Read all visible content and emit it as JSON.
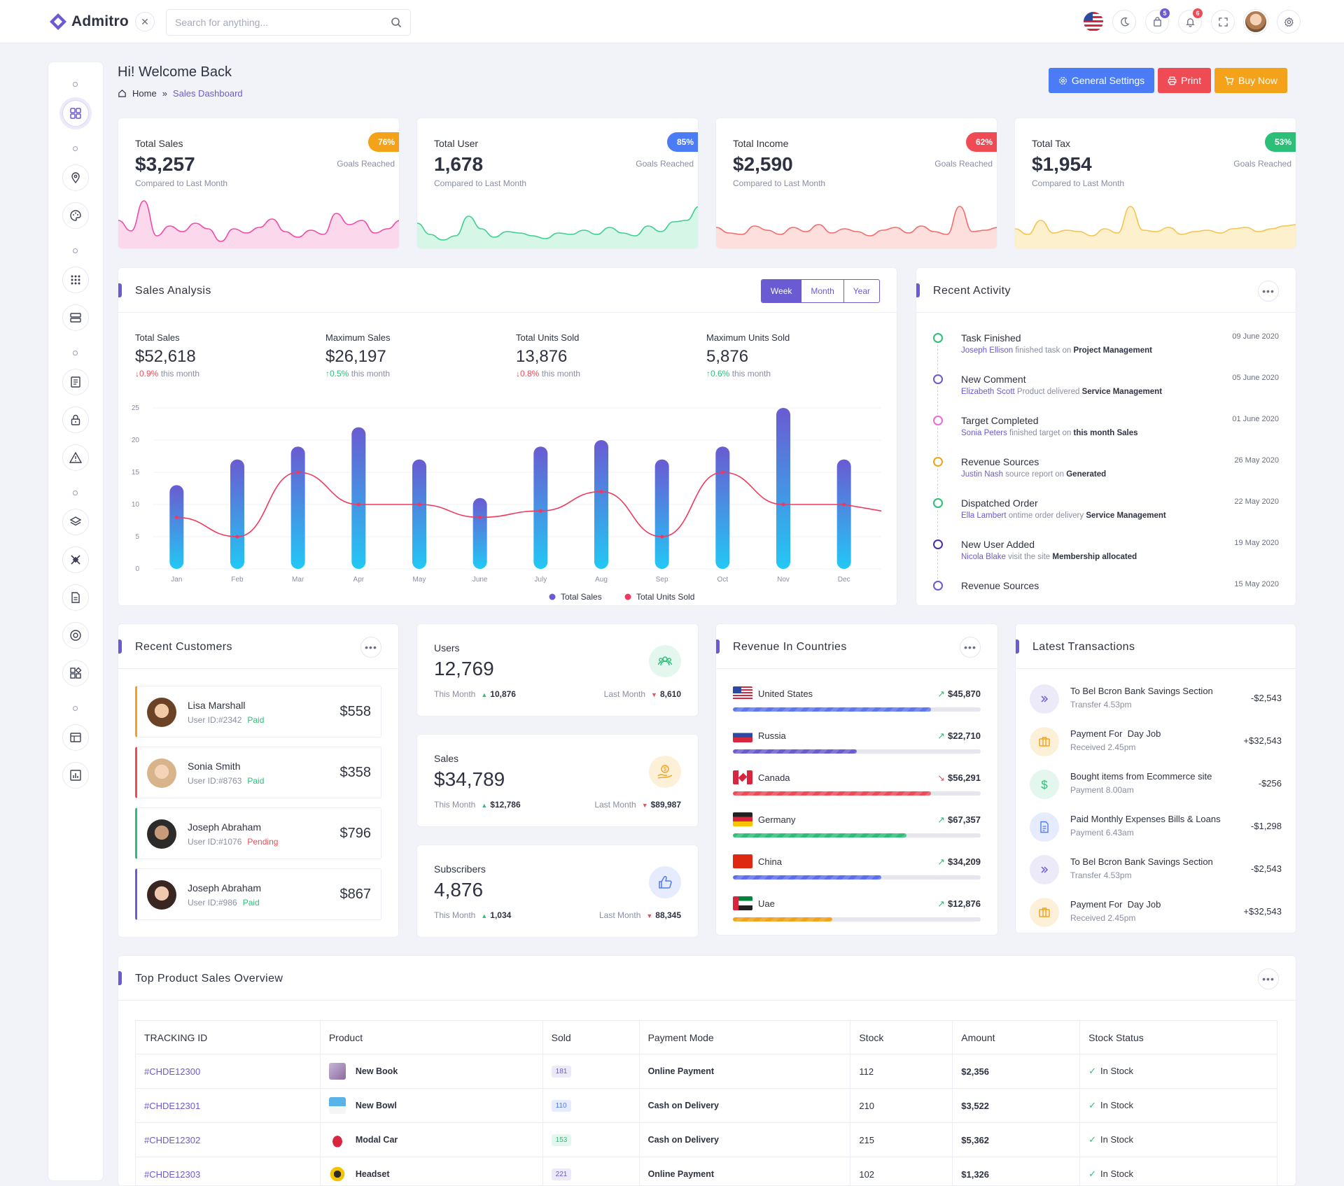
{
  "app": {
    "brand": "Admitro",
    "search_placeholder": "Search for anything...",
    "cart_count": "5",
    "notif_count": "6"
  },
  "page": {
    "title": "Hi! Welcome Back",
    "crumb_home": "Home",
    "crumb_sep": "»",
    "crumb_current": "Sales Dashboard"
  },
  "actions": {
    "settings": "General Settings",
    "print": "Print",
    "buy": "Buy Now"
  },
  "stats": [
    {
      "label": "Total Sales",
      "value": "$3,257",
      "compare": "Compared to Last Month",
      "pct": "76%",
      "goal": "Goals Reached",
      "color": "#f4a21a",
      "line": "#f14aa5",
      "fill": "#fcd8ec"
    },
    {
      "label": "Total User",
      "value": "1,678",
      "compare": "Compared to Last Month",
      "pct": "85%",
      "goal": "Goals Reached",
      "color": "#4c7cf5",
      "line": "#3ecf8e",
      "fill": "#d6f6e7"
    },
    {
      "label": "Total Income",
      "value": "$2,590",
      "compare": "Compared to Last Month",
      "pct": "62%",
      "goal": "Goals Reached",
      "color": "#ef4b55",
      "line": "#f56a6a",
      "fill": "#fde0de"
    },
    {
      "label": "Total Tax",
      "value": "$1,954",
      "compare": "Compared to Last Month",
      "pct": "53%",
      "goal": "Goals Reached",
      "color": "#2dbf78",
      "line": "#f6c44e",
      "fill": "#fdf0cc"
    }
  ],
  "sales_analysis": {
    "title": "Sales Analysis",
    "tabs": [
      "Week",
      "Month",
      "Year"
    ],
    "metrics": [
      {
        "label": "Total Sales",
        "value": "$52,618",
        "dir": "dn",
        "change": "0.9%",
        "period": "this month"
      },
      {
        "label": "Maximum Sales",
        "value": "$26,197",
        "dir": "up",
        "change": "0.5%",
        "period": "this month"
      },
      {
        "label": "Total Units Sold",
        "value": "13,876",
        "dir": "dn",
        "change": "0.8%",
        "period": "this month"
      },
      {
        "label": "Maximum Units Sold",
        "value": "5,876",
        "dir": "up",
        "change": "0.6%",
        "period": "this month"
      }
    ]
  },
  "chart_data": {
    "type": "bar",
    "categories": [
      "Jan",
      "Feb",
      "Mar",
      "Apr",
      "May",
      "June",
      "July",
      "Aug",
      "Sep",
      "Oct",
      "Nov",
      "Dec"
    ],
    "series": [
      {
        "name": "Total Sales",
        "type": "bar",
        "values": [
          13,
          17,
          19,
          22,
          17,
          11,
          19,
          20,
          17,
          19,
          25,
          17
        ],
        "color": "#6a5bd2"
      },
      {
        "name": "Total Units Sold",
        "type": "line",
        "values": [
          8,
          5,
          15,
          10,
          10,
          8,
          9,
          12,
          5,
          15,
          10,
          10
        ],
        "color": "#f0395e"
      }
    ],
    "ylim": [
      0,
      25
    ],
    "yticks": [
      0,
      5,
      10,
      15,
      20,
      25
    ],
    "grid": true,
    "legend": "bottom"
  },
  "activity": {
    "title": "Recent Activity",
    "items": [
      {
        "title": "Task Finished",
        "who": "Joseph Ellison",
        "text": " finished task on ",
        "obj": "Project Management",
        "date": "09 June 2020",
        "color": "#2dbf78"
      },
      {
        "title": "New Comment",
        "who": "Elizabeth Scott",
        "text": " Product delivered ",
        "obj": "Service Management",
        "date": "05 June 2020",
        "color": "#6a5bd2"
      },
      {
        "title": "Target Completed",
        "who": "Sonia Peters",
        "text": " finished target on ",
        "obj": "this month Sales",
        "date": "01 June 2020",
        "color": "#ec6ad7"
      },
      {
        "title": "Revenue Sources",
        "who": "Justin Nash",
        "text": " source report on ",
        "obj": "Generated",
        "date": "26 May 2020",
        "color": "#f4a21a"
      },
      {
        "title": "Dispatched Order",
        "who": "Ella Lambert",
        "text": " ontime order delivery ",
        "obj": "Service Management",
        "date": "22 May 2020",
        "color": "#2dbf78"
      },
      {
        "title": "New User Added",
        "who": "Nicola Blake",
        "text": " visit the site ",
        "obj": "Membership allocated",
        "date": "19 May 2020",
        "color": "#4b2bb3"
      },
      {
        "title": "Revenue Sources",
        "who": "",
        "text": "",
        "obj": "",
        "date": "15 May 2020",
        "color": "#6a5bd2"
      }
    ]
  },
  "customers": {
    "title": "Recent Customers",
    "items": [
      {
        "name": "Lisa Marshall",
        "id": "User ID:#2342",
        "status": "Paid",
        "amount": "$558",
        "color": "#f4a21a"
      },
      {
        "name": "Sonia Smith",
        "id": "User ID:#8763",
        "status": "Paid",
        "amount": "$358",
        "color": "#ef4b55"
      },
      {
        "name": "Joseph Abraham",
        "id": "User ID:#1076",
        "status": "Pending",
        "amount": "$796",
        "color": "#2dbf78"
      },
      {
        "name": "Joseph Abraham",
        "id": "User ID:#986",
        "status": "Paid",
        "amount": "$867",
        "color": "#6a5bd2"
      }
    ]
  },
  "minis": [
    {
      "label": "Users",
      "value": "12,769",
      "tm_label": "This Month",
      "tm": "10,876",
      "lm_label": "Last Month",
      "lm": "8,610",
      "icon": "users-icon",
      "bg": "#e3f7ee",
      "fg": "#2dbf78"
    },
    {
      "label": "Sales",
      "value": "$34,789",
      "tm_label": "This Month",
      "tm": "$12,786",
      "lm_label": "Last Month",
      "lm": "$89,987",
      "icon": "dollar-hand-icon",
      "bg": "#fdf0d8",
      "fg": "#f4a21a"
    },
    {
      "label": "Subscribers",
      "value": "4,876",
      "tm_label": "This Month",
      "tm": "1,034",
      "lm_label": "Last Month",
      "lm": "88,345",
      "icon": "thumbs-up-icon",
      "bg": "#e6ecfd",
      "fg": "#4c7cf5"
    }
  ],
  "countries": {
    "title": "Revenue In Countries",
    "items": [
      {
        "name": "United States",
        "amount": "$45,870",
        "trend": "up",
        "pct": 0.8,
        "color": "#5b78f0"
      },
      {
        "name": "Russia",
        "amount": "$22,710",
        "trend": "up",
        "pct": 0.5,
        "color": "#6a5bd2"
      },
      {
        "name": "Canada",
        "amount": "$56,291",
        "trend": "down",
        "pct": 0.8,
        "color": "#ef4b55"
      },
      {
        "name": "Germany",
        "amount": "$67,357",
        "trend": "up",
        "pct": 0.7,
        "color": "#2dbf78"
      },
      {
        "name": "China",
        "amount": "$34,209",
        "trend": "up",
        "pct": 0.6,
        "color": "#5b6ef0"
      },
      {
        "name": "Uae",
        "amount": "$12,876",
        "trend": "up",
        "pct": 0.4,
        "color": "#f4a21a"
      }
    ]
  },
  "transactions": {
    "title": "Latest Transactions",
    "items": [
      {
        "prefix": "To Bel Bcron Bank ",
        "strong": "Savings Section",
        "sub": "Transfer 4.53pm",
        "amount": "-$2,543",
        "icon": "chevrons-right-icon",
        "bg": "#eceaf8",
        "fg": "#6a5bd2"
      },
      {
        "prefix": "Payment For  ",
        "strong": "Day Job",
        "sub": "Received 2.45pm",
        "amount": "+$32,543",
        "icon": "briefcase-icon",
        "bg": "#fdf0d8",
        "fg": "#f4a21a"
      },
      {
        "prefix": "Bought items from ",
        "strong": "Ecommerce site",
        "sub": "Payment 8.00am",
        "amount": "-$256",
        "icon": "dollar-icon",
        "bg": "#e3f7ee",
        "fg": "#2dbf78"
      },
      {
        "prefix": "Paid Monthly Expenses ",
        "strong": "Bills & Loans",
        "sub": "Payment 6.43am",
        "amount": "-$1,298",
        "icon": "document-icon",
        "bg": "#e6ecfd",
        "fg": "#4c7cf5"
      },
      {
        "prefix": "To Bel Bcron Bank ",
        "strong": "Savings Section",
        "sub": "Transfer 4.53pm",
        "amount": "-$2,543",
        "icon": "chevrons-right-icon",
        "bg": "#eceaf8",
        "fg": "#6a5bd2"
      },
      {
        "prefix": "Payment For  ",
        "strong": "Day Job",
        "sub": "Received 2.45pm",
        "amount": "+$32,543",
        "icon": "briefcase-icon",
        "bg": "#fdf0d8",
        "fg": "#f4a21a"
      }
    ]
  },
  "products": {
    "title": "Top Product Sales Overview",
    "columns": [
      "TRACKING ID",
      "Product",
      "Sold",
      "Payment Mode",
      "Stock",
      "Amount",
      "Stock Status"
    ],
    "rows": [
      {
        "id": "#CHDE12300",
        "product": "New Book",
        "sold": "181",
        "sold_bg": "#eceaf8",
        "sold_fg": "#6a5bd2",
        "mode": "Online Payment",
        "stock": "112",
        "amount": "$2,356",
        "status": "In Stock"
      },
      {
        "id": "#CHDE12301",
        "product": "New Bowl",
        "sold": "110",
        "sold_bg": "#e6ecfd",
        "sold_fg": "#4c7cf5",
        "mode": "Cash on Delivery",
        "stock": "210",
        "amount": "$3,522",
        "status": "In Stock"
      },
      {
        "id": "#CHDE12302",
        "product": "Modal Car",
        "sold": "153",
        "sold_bg": "#e3f7ee",
        "sold_fg": "#2dbf78",
        "mode": "Cash on Delivery",
        "stock": "215",
        "amount": "$5,362",
        "status": "In Stock"
      },
      {
        "id": "#CHDE12303",
        "product": "Headset",
        "sold": "221",
        "sold_bg": "#eceaf8",
        "sold_fg": "#6a5bd2",
        "mode": "Online Payment",
        "stock": "102",
        "amount": "$1,326",
        "status": "In Stock"
      }
    ]
  }
}
